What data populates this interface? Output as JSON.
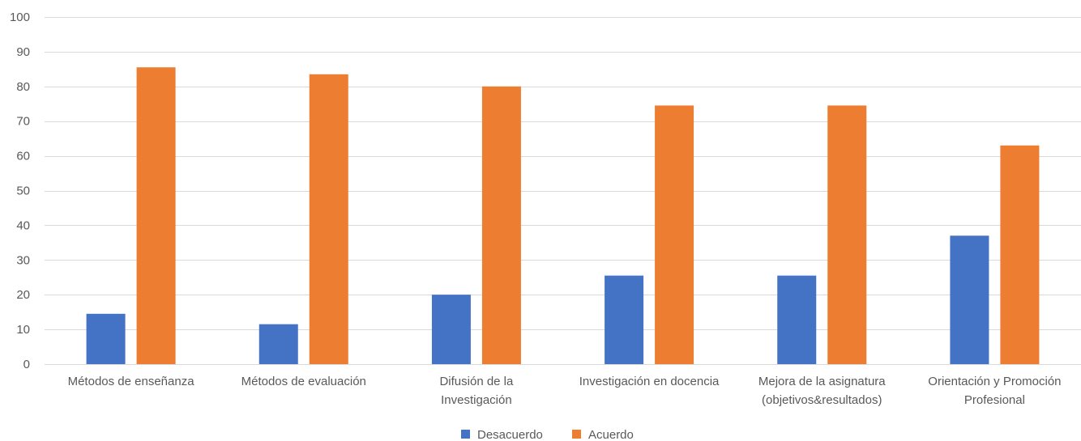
{
  "chart_data": {
    "type": "bar",
    "categories": [
      [
        "Métodos de enseñanza"
      ],
      [
        "Métodos de evaluación"
      ],
      [
        "Difusión de la",
        "Investigación"
      ],
      [
        "Investigación en docencia"
      ],
      [
        "Mejora de la asignatura",
        "(objetivos&resultados)"
      ],
      [
        "Orientación y Promoción",
        "Profesional"
      ]
    ],
    "series": [
      {
        "name": "Desacuerdo",
        "color": "#4472c4",
        "values": [
          14.5,
          11.5,
          20,
          25.5,
          25.5,
          37
        ]
      },
      {
        "name": "Acuerdo",
        "color": "#ed7d31",
        "values": [
          85.5,
          83.5,
          80,
          74.5,
          74.5,
          63
        ]
      }
    ],
    "ylim": [
      0,
      100
    ],
    "yticks": [
      0,
      10,
      20,
      30,
      40,
      50,
      60,
      70,
      80,
      90,
      100
    ],
    "grid": true,
    "legend_position": "bottom",
    "title": "",
    "xlabel": "",
    "ylabel": ""
  }
}
